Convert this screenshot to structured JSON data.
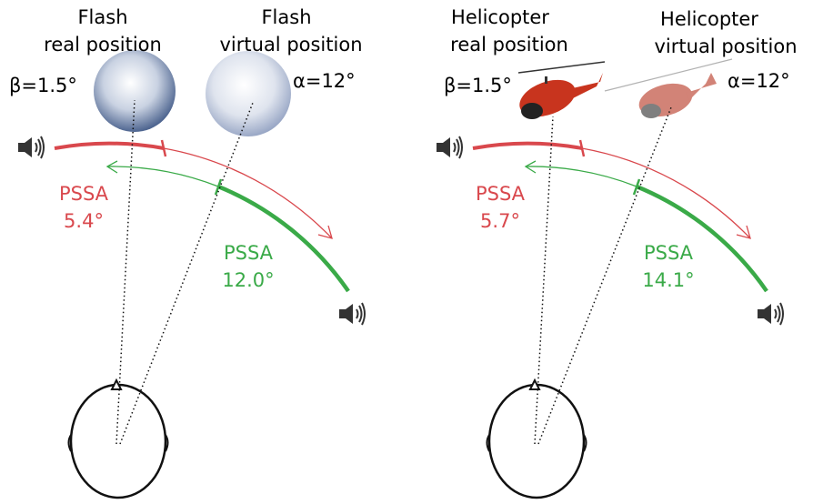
{
  "panels": [
    {
      "real_title": [
        "Flash",
        "real position"
      ],
      "virtual_title": [
        "Flash",
        "virtual position"
      ],
      "beta": "β=1.5°",
      "alpha": "α=12°",
      "pssa_red": [
        "PSSA",
        "5.4°"
      ],
      "pssa_green": [
        "PSSA",
        "12.0°"
      ]
    },
    {
      "real_title": [
        "Helicopter",
        "real position"
      ],
      "virtual_title": [
        "Helicopter",
        "virtual position"
      ],
      "beta": "β=1.5°",
      "alpha": "α=12°",
      "pssa_red": [
        "PSSA",
        "5.7°"
      ],
      "pssa_green": [
        "PSSA",
        "14.1°"
      ]
    }
  ]
}
